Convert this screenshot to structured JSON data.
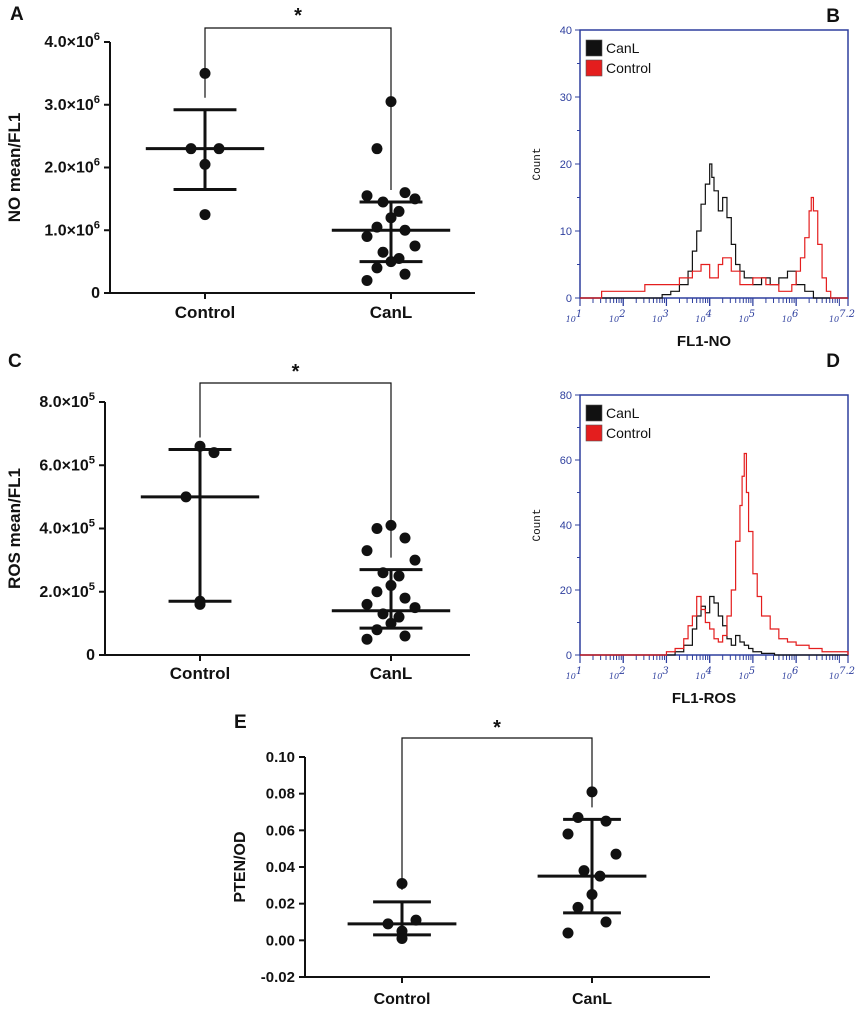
{
  "colors": {
    "black": "#111111",
    "red": "#e41e1e",
    "axis_blue": "#2e3f9e"
  },
  "chart_data": [
    {
      "panel": "A",
      "type": "scatter",
      "ylabel": "NO mean/FL1",
      "yticks": [
        {
          "value": 0,
          "mant": "0",
          "exp": ""
        },
        {
          "value": 1000000,
          "mant": "1.0×10",
          "exp": "6"
        },
        {
          "value": 2000000,
          "mant": "2.0×10",
          "exp": "6"
        },
        {
          "value": 3000000,
          "mant": "3.0×10",
          "exp": "6"
        },
        {
          "value": 4000000,
          "mant": "4.0×10",
          "exp": "6"
        }
      ],
      "ylim": [
        0,
        4000000
      ],
      "categories": [
        "Control",
        "CanL"
      ],
      "significance": "*",
      "groups": [
        {
          "name": "Control",
          "points": [
            3500000,
            2300000,
            2300000,
            2050000,
            1250000
          ],
          "center": 2300000,
          "low": 1650000,
          "high": 2920000
        },
        {
          "name": "CanL",
          "points": [
            3050000,
            2300000,
            1600000,
            1550000,
            1500000,
            1450000,
            1300000,
            1200000,
            1050000,
            1000000,
            900000,
            750000,
            650000,
            550000,
            500000,
            400000,
            300000,
            200000
          ],
          "center": 1000000,
          "low": 500000,
          "high": 1450000
        }
      ]
    },
    {
      "panel": "B",
      "type": "line",
      "xlabel": "FL1-NO",
      "ylabel": "Count",
      "xlog": [
        1,
        7.2
      ],
      "xticks": [
        {
          "value": 1,
          "label": "10",
          "exp": "1"
        },
        {
          "value": 2,
          "label": "10",
          "exp": "2"
        },
        {
          "value": 3,
          "label": "10",
          "exp": "3"
        },
        {
          "value": 4,
          "label": "10",
          "exp": "4"
        },
        {
          "value": 5,
          "label": "10",
          "exp": "5"
        },
        {
          "value": 6,
          "label": "10",
          "exp": "6"
        },
        {
          "value": 7.2,
          "label": "10",
          "exp": "7.2"
        }
      ],
      "yticks": [
        0,
        10,
        20,
        30,
        40
      ],
      "ylim": [
        0,
        40
      ],
      "legend": [
        "CanL",
        "Control"
      ],
      "series": [
        {
          "name": "CanL",
          "color": "black",
          "x": [
            1.0,
            2.0,
            2.9,
            3.1,
            3.3,
            3.5,
            3.6,
            3.7,
            3.8,
            3.9,
            4.0,
            4.05,
            4.1,
            4.2,
            4.3,
            4.4,
            4.5,
            4.6,
            4.7,
            4.8,
            5.0,
            5.2,
            5.4,
            5.6,
            5.8,
            6.0,
            6.2,
            6.4,
            7.2
          ],
          "y": [
            0,
            0,
            0.5,
            1,
            2,
            4,
            7,
            10,
            14,
            17,
            20,
            18,
            16,
            13,
            15,
            12,
            8,
            5,
            4,
            3,
            2,
            3,
            2,
            3,
            4,
            2,
            1,
            0,
            0
          ]
        },
        {
          "name": "Control",
          "color": "red",
          "x": [
            1.0,
            1.5,
            2.0,
            2.5,
            3.0,
            3.3,
            3.6,
            3.8,
            4.0,
            4.2,
            4.3,
            4.5,
            4.7,
            5.0,
            5.3,
            5.6,
            5.9,
            6.0,
            6.1,
            6.2,
            6.3,
            6.35,
            6.4,
            6.5,
            6.6,
            6.7,
            6.8,
            7.2
          ],
          "y": [
            0,
            1,
            1,
            2,
            2,
            3,
            4,
            5,
            3,
            5,
            6,
            4,
            2,
            3,
            2,
            1,
            2,
            4,
            6,
            9,
            13,
            15,
            13,
            8,
            3,
            1,
            0,
            0
          ]
        }
      ]
    },
    {
      "panel": "C",
      "type": "scatter",
      "ylabel": "ROS mean/FL1",
      "yticks": [
        {
          "value": 0,
          "mant": "0",
          "exp": ""
        },
        {
          "value": 200000,
          "mant": "2.0×10",
          "exp": "5"
        },
        {
          "value": 400000,
          "mant": "4.0×10",
          "exp": "5"
        },
        {
          "value": 600000,
          "mant": "6.0×10",
          "exp": "5"
        },
        {
          "value": 800000,
          "mant": "8.0×10",
          "exp": "5"
        }
      ],
      "ylim": [
        0,
        800000
      ],
      "categories": [
        "Control",
        "CanL"
      ],
      "significance": "*",
      "groups": [
        {
          "name": "Control",
          "points": [
            660000,
            640000,
            500000,
            170000,
            160000
          ],
          "center": 500000,
          "low": 170000,
          "high": 650000
        },
        {
          "name": "CanL",
          "points": [
            410000,
            400000,
            370000,
            330000,
            300000,
            260000,
            250000,
            220000,
            200000,
            180000,
            160000,
            150000,
            130000,
            120000,
            100000,
            80000,
            60000,
            50000
          ],
          "center": 140000,
          "low": 85000,
          "high": 270000
        }
      ]
    },
    {
      "panel": "D",
      "type": "line",
      "xlabel": "FL1-ROS",
      "ylabel": "Count",
      "xlog": [
        1,
        7.2
      ],
      "xticks": [
        {
          "value": 1,
          "label": "10",
          "exp": "1"
        },
        {
          "value": 2,
          "label": "10",
          "exp": "2"
        },
        {
          "value": 3,
          "label": "10",
          "exp": "3"
        },
        {
          "value": 4,
          "label": "10",
          "exp": "4"
        },
        {
          "value": 5,
          "label": "10",
          "exp": "5"
        },
        {
          "value": 6,
          "label": "10",
          "exp": "6"
        },
        {
          "value": 7.2,
          "label": "10",
          "exp": "7.2"
        }
      ],
      "yticks": [
        0,
        20,
        40,
        60,
        80
      ],
      "ylim": [
        0,
        80
      ],
      "legend": [
        "CanL",
        "Control"
      ],
      "series": [
        {
          "name": "CanL",
          "color": "black",
          "x": [
            1.0,
            2.5,
            3.2,
            3.4,
            3.6,
            3.7,
            3.8,
            3.9,
            4.0,
            4.1,
            4.2,
            4.3,
            4.4,
            4.5,
            4.6,
            4.7,
            4.8,
            4.9,
            5.0,
            5.2,
            5.5,
            7.2
          ],
          "y": [
            0,
            0,
            1,
            3,
            8,
            12,
            15,
            13,
            18,
            16,
            12,
            9,
            5,
            3,
            6,
            4,
            3,
            2,
            1,
            0.5,
            0,
            0
          ]
        },
        {
          "name": "Control",
          "color": "red",
          "x": [
            1.0,
            2.5,
            3.0,
            3.2,
            3.4,
            3.5,
            3.6,
            3.7,
            3.8,
            3.9,
            4.0,
            4.1,
            4.2,
            4.3,
            4.4,
            4.5,
            4.6,
            4.7,
            4.75,
            4.8,
            4.85,
            4.9,
            5.0,
            5.1,
            5.2,
            5.4,
            5.6,
            5.8,
            6.0,
            6.3,
            6.6,
            7.2
          ],
          "y": [
            0,
            0,
            1,
            2,
            5,
            9,
            12,
            18,
            14,
            10,
            8,
            5,
            4,
            6,
            12,
            20,
            35,
            46,
            55,
            62,
            50,
            38,
            25,
            18,
            12,
            8,
            5,
            4,
            3,
            2,
            1,
            0
          ]
        }
      ]
    },
    {
      "panel": "E",
      "type": "scatter",
      "ylabel": "PTEN/OD",
      "yticks": [
        {
          "value": -0.02,
          "mant": "-0.02",
          "exp": ""
        },
        {
          "value": 0.0,
          "mant": "0.00",
          "exp": ""
        },
        {
          "value": 0.02,
          "mant": "0.02",
          "exp": ""
        },
        {
          "value": 0.04,
          "mant": "0.04",
          "exp": ""
        },
        {
          "value": 0.06,
          "mant": "0.06",
          "exp": ""
        },
        {
          "value": 0.08,
          "mant": "0.08",
          "exp": ""
        },
        {
          "value": 0.1,
          "mant": "0.10",
          "exp": ""
        }
      ],
      "ylim": [
        -0.02,
        0.1
      ],
      "categories": [
        "Control",
        "CanL"
      ],
      "significance": "*",
      "groups": [
        {
          "name": "Control",
          "points": [
            0.031,
            0.011,
            0.009,
            0.005,
            0.001
          ],
          "center": 0.009,
          "low": 0.003,
          "high": 0.021
        },
        {
          "name": "CanL",
          "points": [
            0.081,
            0.067,
            0.065,
            0.058,
            0.047,
            0.038,
            0.035,
            0.025,
            0.018,
            0.01,
            0.004
          ],
          "center": 0.035,
          "low": 0.015,
          "high": 0.066
        }
      ]
    }
  ]
}
